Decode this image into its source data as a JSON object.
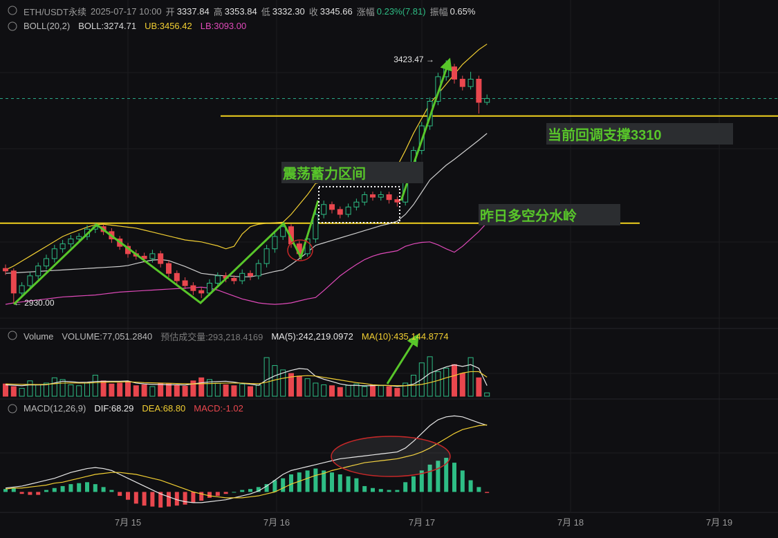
{
  "chart_data": {
    "type": "candlestick",
    "header": {
      "symbol": "ETH/USDT永续",
      "time": "2025-07-17 10:00",
      "fields": [
        {
          "label": "开",
          "value": "3337.84"
        },
        {
          "label": "高",
          "value": "3353.84"
        },
        {
          "label": "低",
          "value": "3332.30"
        },
        {
          "label": "收",
          "value": "3345.66"
        },
        {
          "label": "涨幅",
          "value": "0.23%(7.81)"
        },
        {
          "label": "振幅",
          "value": "0.65%"
        }
      ]
    },
    "boll_legend": {
      "title": "BOLL(20,2)",
      "items": [
        {
          "text": "BOLL:3274.71",
          "color": "#d8d8d8"
        },
        {
          "text": "UB:3456.42",
          "color": "#f2cf32"
        },
        {
          "text": "LB:3093.00",
          "color": "#e04aba"
        }
      ]
    },
    "volume_legend": {
      "title": "Volume",
      "items": [
        {
          "text": "VOLUME:77,051.2840",
          "color": "#b8b8b8"
        },
        {
          "text": "预估成交量:293,218.4169",
          "color": "#7a7a7a"
        },
        {
          "text": "MA(5):242,219.0972",
          "color": "#e8e8e8"
        },
        {
          "text": "MA(10):435,144.8774",
          "color": "#f2cf32"
        }
      ]
    },
    "macd_legend": {
      "title": "MACD(12,26,9)",
      "items": [
        {
          "text": "DIF:68.29",
          "color": "#e8e8e8"
        },
        {
          "text": "DEA:68.80",
          "color": "#f2cf32"
        },
        {
          "text": "MACD:-1.02",
          "color": "#e9474e"
        }
      ]
    },
    "up_color": "#2ebd85",
    "down_color": "#e9474e",
    "ylim": [
      2892,
      3546
    ],
    "candles": [
      [
        3000,
        3008,
        2987,
        2995
      ],
      [
        2995,
        3000,
        2930,
        2950
      ],
      [
        2950,
        2972,
        2942,
        2965
      ],
      [
        2965,
        2992,
        2958,
        2985
      ],
      [
        2985,
        3012,
        2978,
        3005
      ],
      [
        3005,
        3028,
        2998,
        3020
      ],
      [
        3020,
        3048,
        3012,
        3040
      ],
      [
        3040,
        3058,
        3032,
        3050
      ],
      [
        3050,
        3068,
        3042,
        3060
      ],
      [
        3060,
        3072,
        3052,
        3065
      ],
      [
        3065,
        3088,
        3058,
        3080
      ],
      [
        3080,
        3092,
        3072,
        3085
      ],
      [
        3085,
        3090,
        3068,
        3075
      ],
      [
        3075,
        3082,
        3052,
        3060
      ],
      [
        3060,
        3066,
        3038,
        3045
      ],
      [
        3045,
        3052,
        3022,
        3030
      ],
      [
        3030,
        3038,
        3018,
        3025
      ],
      [
        3025,
        3032,
        3012,
        3020
      ],
      [
        3020,
        3038,
        3012,
        3030
      ],
      [
        3030,
        3036,
        3002,
        3010
      ],
      [
        3010,
        3016,
        2982,
        2990
      ],
      [
        2990,
        2996,
        2968,
        2975
      ],
      [
        2975,
        2982,
        2958,
        2965
      ],
      [
        2965,
        2972,
        2946,
        2955
      ],
      [
        2955,
        2962,
        2940,
        2950
      ],
      [
        2950,
        2978,
        2944,
        2970
      ],
      [
        2970,
        2992,
        2962,
        2985
      ],
      [
        2985,
        2992,
        2972,
        2980
      ],
      [
        2980,
        2986,
        2968,
        2975
      ],
      [
        2975,
        2998,
        2968,
        2990
      ],
      [
        2990,
        2996,
        2976,
        2985
      ],
      [
        2985,
        3018,
        2978,
        3010
      ],
      [
        3010,
        3048,
        3002,
        3040
      ],
      [
        3040,
        3072,
        3032,
        3065
      ],
      [
        3065,
        3092,
        3058,
        3085
      ],
      [
        3085,
        3090,
        3042,
        3050
      ],
      [
        3050,
        3056,
        3022,
        3030
      ],
      [
        3030,
        3068,
        3024,
        3060
      ],
      [
        3060,
        3118,
        3052,
        3110
      ],
      [
        3110,
        3138,
        3102,
        3130
      ],
      [
        3130,
        3136,
        3112,
        3120
      ],
      [
        3120,
        3126,
        3102,
        3110
      ],
      [
        3110,
        3132,
        3104,
        3125
      ],
      [
        3125,
        3142,
        3118,
        3135
      ],
      [
        3135,
        3156,
        3128,
        3150
      ],
      [
        3150,
        3156,
        3138,
        3145
      ],
      [
        3145,
        3157,
        3138,
        3150
      ],
      [
        3150,
        3156,
        3132,
        3140
      ],
      [
        3140,
        3146,
        3126,
        3135
      ],
      [
        3135,
        3198,
        3128,
        3190
      ],
      [
        3190,
        3248,
        3182,
        3240
      ],
      [
        3240,
        3298,
        3232,
        3290
      ],
      [
        3290,
        3348,
        3282,
        3340
      ],
      [
        3340,
        3398,
        3332,
        3390
      ],
      [
        3390,
        3423.47,
        3382,
        3410
      ],
      [
        3410,
        3416,
        3376,
        3385
      ],
      [
        3385,
        3392,
        3362,
        3370
      ],
      [
        3370,
        3400,
        3364,
        3385
      ],
      [
        3385,
        3392,
        3315,
        3337.84
      ],
      [
        3337.84,
        3353.84,
        3332.3,
        3345.66
      ]
    ],
    "boll": {
      "mid": [
        2990,
        2991,
        2992,
        2993,
        2994,
        2995,
        2996,
        2997,
        2998,
        2999,
        3000,
        3001,
        3002,
        3003,
        3004,
        3006,
        3010,
        3014,
        3017,
        3018,
        3016,
        3010,
        3004,
        2997,
        2990,
        2988,
        2986,
        2985,
        2984,
        2983,
        2983,
        2986,
        2990,
        2994,
        2997,
        3008,
        3020,
        3033,
        3047,
        3052,
        3057,
        3062,
        3067,
        3072,
        3077,
        3082,
        3087,
        3091,
        3096,
        3110,
        3130,
        3155,
        3180,
        3195,
        3210,
        3222,
        3235,
        3248,
        3261,
        3274.71
      ],
      "upper": [
        2997,
        3005,
        3015,
        3025,
        3035,
        3045,
        3055,
        3065,
        3072,
        3078,
        3084,
        3089,
        3090,
        3088,
        3086,
        3084,
        3082,
        3078,
        3074,
        3070,
        3066,
        3062,
        3058,
        3056,
        3054,
        3050,
        3046,
        3040,
        3045,
        3070,
        3085,
        3090,
        3092,
        3093,
        3094,
        3110,
        3130,
        3150,
        3173,
        3176,
        3180,
        3183,
        3187,
        3190,
        3194,
        3197,
        3200,
        3204,
        3208,
        3240,
        3275,
        3305,
        3335,
        3355,
        3375,
        3395,
        3415,
        3430,
        3445,
        3456.42
      ],
      "lower": [
        2927,
        2930,
        2932,
        2934,
        2936,
        2938,
        2940,
        2942,
        2943,
        2944,
        2945,
        2946,
        2948,
        2950,
        2952,
        2953,
        2954,
        2955,
        2956,
        2957,
        2958,
        2959,
        2960,
        2961,
        2962,
        2960,
        2956,
        2950,
        2944,
        2938,
        2934,
        2930,
        2928,
        2927,
        2928,
        2930,
        2934,
        2938,
        2941,
        2955,
        2970,
        2985,
        2997,
        3008,
        3018,
        3025,
        3030,
        3033,
        3036,
        3045,
        3050,
        3053,
        3054,
        3048,
        3040,
        3033,
        3045,
        3060,
        3075,
        3093
      ]
    },
    "volume": {
      "ylim": [
        0,
        1150000
      ],
      "values": [
        280000,
        220000,
        180000,
        350000,
        260000,
        300000,
        420000,
        380000,
        260000,
        240000,
        300000,
        480000,
        350000,
        280000,
        300000,
        330000,
        240000,
        260000,
        220000,
        300000,
        280000,
        250000,
        230000,
        350000,
        420000,
        380000,
        300000,
        260000,
        240000,
        280000,
        220000,
        250000,
        880000,
        700000,
        600000,
        520000,
        460000,
        400000,
        300000,
        260000,
        240000,
        200000,
        250000,
        280000,
        220000,
        260000,
        240000,
        220000,
        180000,
        300000,
        480000,
        760000,
        900000,
        560000,
        640000,
        720000,
        520000,
        880000,
        420000,
        77051.284
      ],
      "ma5": [
        260000,
        250000,
        240000,
        260000,
        258000,
        262000,
        302000,
        342000,
        334000,
        316000,
        320000,
        336000,
        342000,
        342000,
        342000,
        348000,
        300000,
        282000,
        270000,
        270000,
        260000,
        262000,
        256000,
        282000,
        306000,
        326000,
        336000,
        342000,
        322000,
        292000,
        276000,
        250000,
        376000,
        466000,
        530000,
        590000,
        632000,
        616000,
        456000,
        388000,
        336000,
        280000,
        250000,
        246000,
        238000,
        242000,
        250000,
        244000,
        224000,
        240000,
        276000,
        384000,
        524000,
        600000,
        668000,
        716000,
        680000,
        720000,
        636000,
        242219.0972
      ],
      "ma10": [
        280000,
        275000,
        270000,
        268000,
        266000,
        270000,
        285000,
        300000,
        305000,
        300000,
        300000,
        310000,
        320000,
        325000,
        325000,
        330000,
        320000,
        310000,
        305000,
        300000,
        295000,
        290000,
        285000,
        280000,
        285000,
        290000,
        295000,
        300000,
        300000,
        300000,
        290000,
        285000,
        320000,
        370000,
        410000,
        440000,
        460000,
        470000,
        460000,
        430000,
        400000,
        370000,
        340000,
        310000,
        290000,
        260000,
        250000,
        245000,
        240000,
        240000,
        250000,
        270000,
        310000,
        360000,
        420000,
        470000,
        530000,
        560000,
        560000,
        435144.8774
      ]
    },
    "macd": {
      "ylim": [
        -21,
        79
      ],
      "dif": [
        4,
        5,
        6,
        8,
        10,
        12,
        14,
        17,
        20,
        22,
        24,
        25,
        24,
        22,
        18,
        14,
        10,
        6,
        2,
        -2,
        -5,
        -8,
        -10,
        -11,
        -11,
        -10,
        -9,
        -8,
        -6,
        -4,
        -2,
        1,
        6,
        12,
        18,
        22,
        24,
        26,
        28,
        30,
        32,
        34,
        35,
        36,
        37,
        38,
        39,
        40,
        41,
        45,
        52,
        60,
        68,
        74,
        77,
        78,
        77,
        74,
        71,
        68.29
      ],
      "dea": [
        3,
        4,
        4,
        5,
        6,
        7,
        9,
        10,
        12,
        14,
        16,
        18,
        19,
        20,
        20,
        19,
        18,
        16,
        14,
        12,
        9,
        6,
        3,
        0,
        -2,
        -4,
        -5,
        -6,
        -6,
        -6,
        -5,
        -4,
        -2,
        0,
        4,
        8,
        11,
        14,
        17,
        19,
        22,
        24,
        26,
        28,
        30,
        31,
        32,
        33,
        34,
        36,
        38,
        41,
        45,
        50,
        55,
        60,
        64,
        66,
        68,
        68.8
      ],
      "hist": [
        3,
        4,
        -2,
        -3,
        -3,
        2,
        4,
        6,
        8,
        9,
        10,
        8,
        5,
        2,
        -4,
        -8,
        -12,
        -14,
        -15,
        -16,
        -15,
        -14,
        -13,
        -11,
        -9,
        -6,
        -4,
        -2,
        0,
        2,
        3,
        5,
        8,
        12,
        14,
        18,
        20,
        22,
        24,
        22,
        20,
        18,
        16,
        14,
        6,
        4,
        3,
        2,
        2,
        10,
        16,
        22,
        28,
        32,
        35,
        30,
        22,
        12,
        5,
        -1.02
      ]
    },
    "levels": [
      {
        "value": 3310,
        "label": "当前回调支撑3310"
      },
      {
        "value": 3092,
        "label": "昨日多空分水岭"
      }
    ],
    "zone_label": "震荡蓄力区间",
    "high_label": "3423.47 →",
    "low_label": "← 2930.00",
    "x_labels": [
      "7月 15",
      "7月 16",
      "7月 17",
      "7月 18",
      "7月 19"
    ]
  }
}
